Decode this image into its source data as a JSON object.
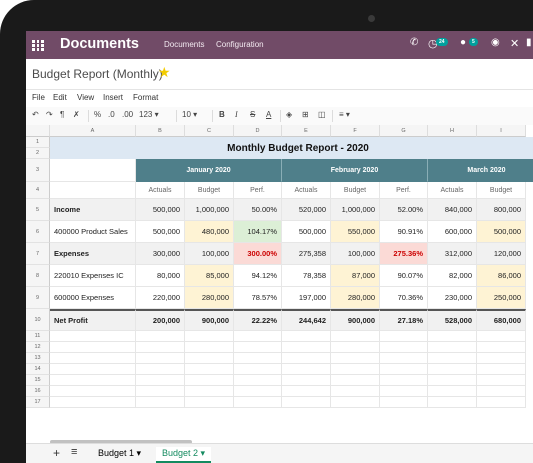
{
  "topbar": {
    "app_title": "Documents",
    "menu": [
      "Documents",
      "Configuration"
    ],
    "activity_badge": "24",
    "message_badge": "5"
  },
  "breadcrumb": "Budget Report (Monthly)",
  "menubar": [
    "File",
    "Edit",
    "View",
    "Insert",
    "Format"
  ],
  "toolbar": {
    "percent": "%",
    "dec_less": ".0",
    "dec_more": ".00",
    "number_format": "123 ▾",
    "font_size": "10 ▾",
    "bold": "B",
    "italic": "I",
    "strike": "S",
    "text_color": "A"
  },
  "spreadsheet": {
    "columns": [
      "A",
      "B",
      "C",
      "D",
      "E",
      "F",
      "G",
      "H",
      "I"
    ],
    "title": "Monthly Budget Report - 2020",
    "months": [
      "January 2020",
      "February 2020",
      "March 2020"
    ],
    "sub_headers": [
      "Actuals",
      "Budget",
      "Perf.",
      "Actuals",
      "Budget",
      "Perf.",
      "Actuals",
      "Budget"
    ],
    "rows": [
      {
        "num": "5",
        "cells": [
          "Income",
          "500,000",
          "1,000,000",
          "50.00%",
          "520,000",
          "1,000,000",
          "52.00%",
          "840,000",
          "800,000"
        ]
      },
      {
        "num": "6",
        "cells": [
          "400000 Product Sales",
          "500,000",
          "480,000",
          "104.17%",
          "500,000",
          "550,000",
          "90.91%",
          "600,000",
          "500,000"
        ]
      },
      {
        "num": "7",
        "cells": [
          "Expenses",
          "300,000",
          "100,000",
          "300.00%",
          "275,358",
          "100,000",
          "275.36%",
          "312,000",
          "120,000"
        ]
      },
      {
        "num": "8",
        "cells": [
          "220010 Expenses IC",
          "80,000",
          "85,000",
          "94.12%",
          "78,358",
          "87,000",
          "90.07%",
          "82,000",
          "86,000"
        ]
      },
      {
        "num": "9",
        "cells": [
          "600000 Expenses",
          "220,000",
          "280,000",
          "78.57%",
          "197,000",
          "280,000",
          "70.36%",
          "230,000",
          "250,000"
        ]
      },
      {
        "num": "10",
        "cells": [
          "Net Profit",
          "200,000",
          "900,000",
          "22.22%",
          "244,642",
          "900,000",
          "27.18%",
          "528,000",
          "680,000"
        ]
      }
    ],
    "empty_rows": [
      "11",
      "12",
      "13",
      "14",
      "15",
      "16",
      "17"
    ],
    "header_rows": [
      "1",
      "2",
      "3",
      "4"
    ]
  },
  "sheet_tabs": [
    "Budget 1",
    "Budget 2"
  ],
  "active_sheet": "Budget 2",
  "colors": {
    "brand": "#714B67",
    "month_header": "#4f7f8a",
    "title_bg": "#dde8f3",
    "budget_highlight": "#fef3d4",
    "perf_good": "#dcefd6",
    "perf_bad": "#fbdad6",
    "active_tab": "#138a5f"
  }
}
